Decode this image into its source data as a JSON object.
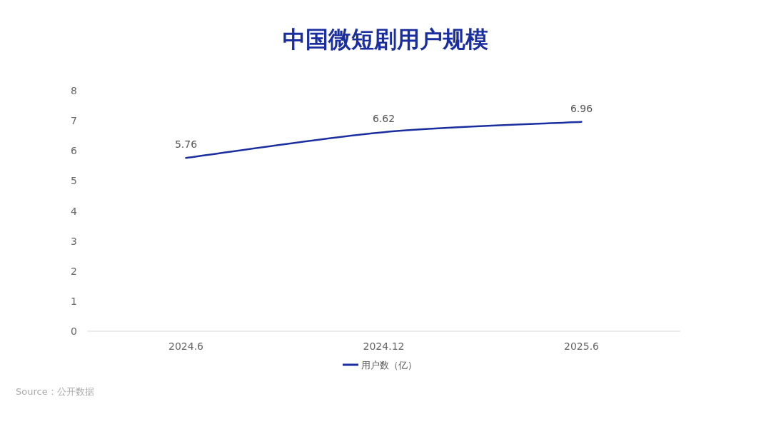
{
  "chart_data": {
    "type": "line",
    "title": "中国微短剧用户规模",
    "categories": [
      "2024.6",
      "2024.12",
      "2025.6"
    ],
    "series": [
      {
        "name": "用户数（亿）",
        "color": "#1a2ea0",
        "values": [
          5.76,
          6.62,
          6.96
        ]
      }
    ],
    "ylim": [
      0,
      8
    ],
    "yticks": [
      0,
      1,
      2,
      3,
      4,
      5,
      6,
      7,
      8
    ],
    "data_labels": true,
    "legend": "bottom",
    "annotations": [
      "Source：公开数据"
    ]
  }
}
